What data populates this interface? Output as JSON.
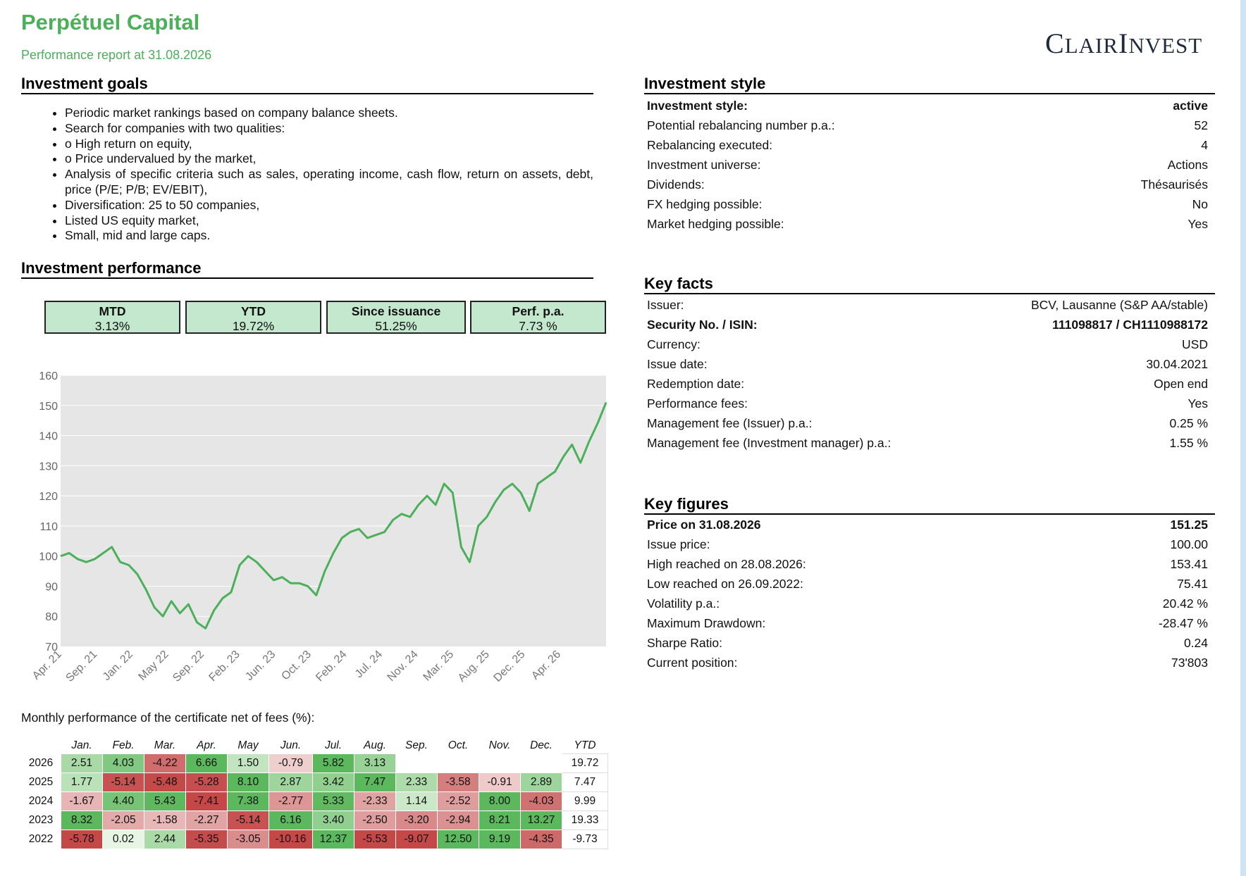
{
  "header": {
    "title": "Perpétuel Capital",
    "subtitle": "Performance report at 31.08.2026",
    "logo": "ClairInvest"
  },
  "goals": {
    "title": "Investment goals",
    "items": [
      "Periodic market rankings based on company balance sheets.",
      "Search for companies with two qualities:",
      "o High return on equity,",
      "o Price undervalued by the market,",
      "Analysis of specific criteria such as sales, operating income, cash flow, return on assets, debt, price (P/E; P/B; EV/EBIT),",
      "Diversification: 25 to 50 companies,",
      "Listed US equity market,",
      "Small, mid and large caps."
    ]
  },
  "performance": {
    "title": "Investment performance",
    "boxes": [
      {
        "label": "MTD",
        "value": "3.13%"
      },
      {
        "label": "YTD",
        "value": "19.72%"
      },
      {
        "label": "Since issuance",
        "value": "51.25%"
      },
      {
        "label": "Perf. p.a.",
        "value": "7.73 %"
      }
    ]
  },
  "style": {
    "title": "Investment style",
    "rows": [
      {
        "label": "Investment style:",
        "value": "active",
        "bold": true
      },
      {
        "label": "Potential rebalancing number p.a.:",
        "value": "52"
      },
      {
        "label": "Rebalancing executed:",
        "value": "4"
      },
      {
        "label": "Investment universe:",
        "value": "Actions"
      },
      {
        "label": "Dividends:",
        "value": "Thésaurisés"
      },
      {
        "label": "FX hedging possible:",
        "value": "No"
      },
      {
        "label": "Market hedging possible:",
        "value": "Yes"
      }
    ]
  },
  "key_facts": {
    "title": "Key facts",
    "rows": [
      {
        "label": "Issuer:",
        "value": "BCV, Lausanne (S&P AA/stable)"
      },
      {
        "label": "Security No. / ISIN:",
        "value": "111098817 / CH1110988172",
        "bold": true
      },
      {
        "label": "Currency:",
        "value": "USD"
      },
      {
        "label": "Issue date:",
        "value": "30.04.2021"
      },
      {
        "label": "Redemption date:",
        "value": "Open end"
      },
      {
        "label": "Performance fees:",
        "value": "Yes"
      },
      {
        "label": "Management fee (Issuer) p.a.:",
        "value": "0.25 %"
      },
      {
        "label": "Management fee (Investment manager) p.a.:",
        "value": "1.55 %"
      }
    ]
  },
  "key_figures": {
    "title": "Key figures",
    "rows": [
      {
        "label": "Price on 31.08.2026",
        "value": "151.25",
        "bold": true
      },
      {
        "label": "Issue price:",
        "value": "100.00"
      },
      {
        "label": "High reached on 28.08.2026:",
        "value": "153.41"
      },
      {
        "label": "Low reached on 26.09.2022:",
        "value": "75.41"
      },
      {
        "label": "Volatility p.a.:",
        "value": "20.42 %"
      },
      {
        "label": "Maximum Drawdown:",
        "value": "-28.47 %"
      },
      {
        "label": "Sharpe Ratio:",
        "value": "0.24"
      },
      {
        "label": "Current position:",
        "value": "73'803"
      }
    ]
  },
  "chart_data": {
    "type": "area",
    "ylim": [
      70,
      160
    ],
    "yticks": [
      70,
      80,
      90,
      100,
      110,
      120,
      130,
      140,
      150,
      160
    ],
    "xticks": [
      "Apr. 21",
      "Sep. 21",
      "Jan. 22",
      "May 22",
      "Sep. 22",
      "Feb. 23",
      "Jun. 23",
      "Oct. 23",
      "Feb. 24",
      "Jul. 24",
      "Nov. 24",
      "Mar. 25",
      "Aug. 25",
      "Dec. 25",
      "Apr. 26"
    ],
    "line_color": "#4caf5a",
    "fill_color": "#e6e6e6",
    "x": [
      "2021-04",
      "2021-05",
      "2021-06",
      "2021-07",
      "2021-08",
      "2021-09",
      "2021-10",
      "2021-11",
      "2021-12",
      "2022-01",
      "2022-02",
      "2022-03",
      "2022-04",
      "2022-05",
      "2022-06",
      "2022-07",
      "2022-08",
      "2022-09",
      "2022-10",
      "2022-11",
      "2022-12",
      "2023-01",
      "2023-02",
      "2023-03",
      "2023-04",
      "2023-05",
      "2023-06",
      "2023-07",
      "2023-08",
      "2023-09",
      "2023-10",
      "2023-11",
      "2023-12",
      "2024-01",
      "2024-02",
      "2024-03",
      "2024-04",
      "2024-05",
      "2024-06",
      "2024-07",
      "2024-08",
      "2024-09",
      "2024-10",
      "2024-11",
      "2024-12",
      "2025-01",
      "2025-02",
      "2025-03",
      "2025-04",
      "2025-05",
      "2025-06",
      "2025-07",
      "2025-08",
      "2025-09",
      "2025-10",
      "2025-11",
      "2025-12",
      "2026-01",
      "2026-02",
      "2026-03",
      "2026-04",
      "2026-05",
      "2026-06",
      "2026-07",
      "2026-08"
    ],
    "values": [
      100,
      101,
      99,
      98,
      99,
      101,
      103,
      98,
      97,
      94,
      89,
      83,
      80,
      85,
      81,
      84,
      78,
      76,
      82,
      86,
      88,
      97,
      100,
      98,
      95,
      92,
      93,
      91,
      91,
      90,
      87,
      95,
      101,
      106,
      108,
      109,
      106,
      107,
      108,
      112,
      114,
      113,
      117,
      120,
      117,
      124,
      121,
      103,
      98,
      110,
      113,
      118,
      122,
      124,
      121,
      115,
      124,
      126,
      128,
      133,
      137,
      131,
      138,
      144,
      151
    ]
  },
  "monthly": {
    "title": "Monthly performance of the certificate net of fees (%):",
    "months": [
      "Jan.",
      "Feb.",
      "Mar.",
      "Apr.",
      "May",
      "Jun.",
      "Jul.",
      "Aug.",
      "Sep.",
      "Oct.",
      "Nov.",
      "Dec.",
      "YTD"
    ],
    "rows": [
      {
        "year": "2026",
        "values": [
          "2.51",
          "4.03",
          "-4.22",
          "6.66",
          "1.50",
          "-0.79",
          "5.82",
          "3.13",
          "",
          "",
          "",
          ""
        ],
        "ytd": "19.72"
      },
      {
        "year": "2025",
        "values": [
          "1.77",
          "-5.14",
          "-5.48",
          "-5.28",
          "8.10",
          "2.87",
          "3.42",
          "7.47",
          "2.33",
          "-3.58",
          "-0.91",
          "2.89"
        ],
        "ytd": "7.47"
      },
      {
        "year": "2024",
        "values": [
          "-1.67",
          "4.40",
          "5.43",
          "-7.41",
          "7.38",
          "-2.77",
          "5.33",
          "-2.33",
          "1.14",
          "-2.52",
          "8.00",
          "-4.03"
        ],
        "ytd": "9.99"
      },
      {
        "year": "2023",
        "values": [
          "8.32",
          "-2.05",
          "-1.58",
          "-2.27",
          "-5.14",
          "6.16",
          "3.40",
          "-2.50",
          "-3.20",
          "-2.94",
          "8.21",
          "13.27"
        ],
        "ytd": "19.33"
      },
      {
        "year": "2022",
        "values": [
          "-5.78",
          "0.02",
          "2.44",
          "-5.35",
          "-3.05",
          "-10.16",
          "12.37",
          "-5.53",
          "-9.07",
          "12.50",
          "9.19",
          "-4.35"
        ],
        "ytd": "-9.73"
      }
    ]
  }
}
